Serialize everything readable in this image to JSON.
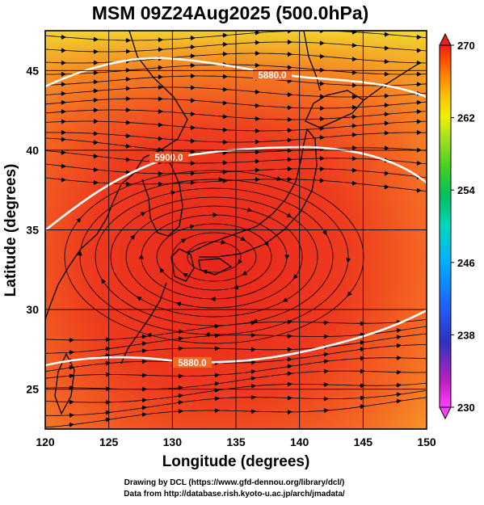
{
  "title": "MSM 09Z24Aug2025 (500.0hPa)",
  "x_axis": {
    "label": "Longitude (degrees)",
    "range": [
      120,
      150
    ],
    "ticks": [
      120,
      125,
      130,
      135,
      140,
      145,
      150
    ]
  },
  "y_axis": {
    "label": "Latitude  (degrees)",
    "range": [
      22.5,
      47.5
    ],
    "ticks": [
      25,
      30,
      35,
      40,
      45
    ]
  },
  "colorbar": {
    "range": [
      230,
      270
    ],
    "ticks": [
      230,
      238,
      246,
      254,
      262,
      270
    ],
    "colors": [
      "#ff40ff",
      "#c020c0",
      "#3030c0",
      "#2060ff",
      "#00b0ff",
      "#00d8c0",
      "#00c060",
      "#40d020",
      "#a0e020",
      "#f0f000",
      "#ffc000",
      "#ff8000",
      "#ff4000",
      "#e82020"
    ]
  },
  "contours": [
    {
      "label": "5880.0"
    },
    {
      "label": "5900.0"
    },
    {
      "label": "5880.0"
    }
  ],
  "credits": [
    "Drawing by DCL (https://www.gfd-dennou.org/library/dcl/)",
    "Data from http://database.rish.kyoto-u.ac.jp/arch/jmadata/"
  ]
}
